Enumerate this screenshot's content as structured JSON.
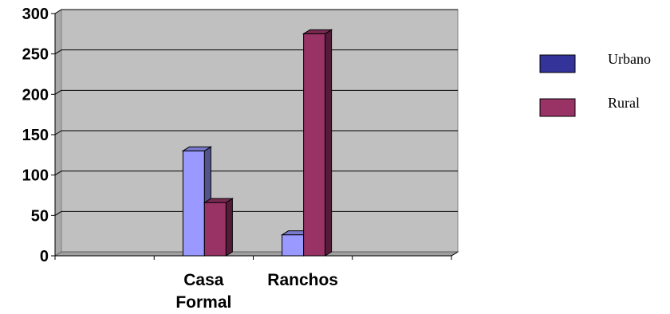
{
  "chart_data": {
    "type": "bar",
    "style": "3d-clustered-column",
    "categories": [
      [
        "",
        ""
      ],
      [
        "Casa",
        "Formal"
      ],
      [
        "Ranchos",
        ""
      ],
      [
        "",
        ""
      ]
    ],
    "series": [
      {
        "name": "Urbano",
        "values": [
          0,
          130,
          26,
          0
        ],
        "color": "#9999ff",
        "legend_color": "#333399"
      },
      {
        "name": "Rural",
        "values": [
          0,
          66,
          275,
          0
        ],
        "color": "#993366",
        "legend_color": "#993366"
      }
    ],
    "ylim": [
      0,
      300
    ],
    "yticks": [
      "0",
      "50",
      "100",
      "150",
      "200",
      "250",
      "300"
    ],
    "grid": true,
    "plot_background": "#c0c0c0",
    "legend_position": "right"
  }
}
